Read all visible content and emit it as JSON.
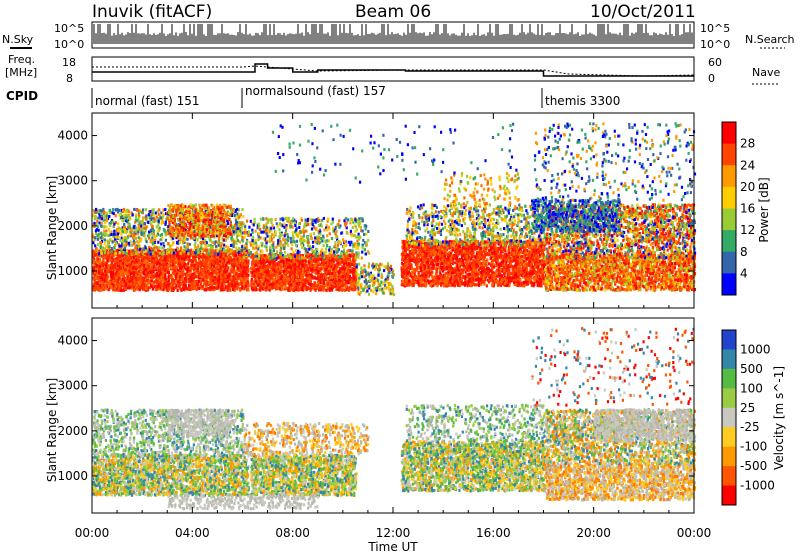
{
  "header": {
    "station": "Inuvik (fitACF)",
    "beam": "Beam 06",
    "date": "10/Oct/2011"
  },
  "top_panels": {
    "nsky_label": "N.Sky",
    "nsky_ticks": [
      "10^5",
      "10^0"
    ],
    "nsearch_label": "N.Search",
    "nsearch_ticks": [
      "10^5",
      "10^0"
    ],
    "freq_label": "Freq.",
    "freq_unit": "[MHz]",
    "freq_ticks": [
      "18",
      "8"
    ],
    "nave_label": "Nave",
    "nave_ticks": [
      "60",
      "0"
    ],
    "cpid_label": "CPID",
    "cpid_segments": [
      {
        "label": "normal (fast) 151",
        "start_hour": 0
      },
      {
        "label": "normalsound (fast) 157",
        "start_hour": 6
      },
      {
        "label": "themis 3300",
        "start_hour": 18
      }
    ]
  },
  "chart_data": [
    {
      "type": "heatmap",
      "title": "",
      "xlabel": "Time UT",
      "ylabel": "Slant Range [km]",
      "xlim_hours": [
        0,
        24
      ],
      "ylim": [
        180,
        4500
      ],
      "yticks": [
        1000,
        2000,
        3000,
        4000
      ],
      "colorbar": {
        "label": "Power [dB]",
        "levels": [
          "28",
          "24",
          "20",
          "16",
          "12",
          "8",
          "4"
        ],
        "colors": [
          "#ff0000",
          "#ff4400",
          "#ff9900",
          "#ffcc00",
          "#99cc33",
          "#33aa66",
          "#3366aa",
          "#0000ff"
        ]
      }
    },
    {
      "type": "heatmap",
      "title": "",
      "xlabel": "Time UT",
      "ylabel": "Slant Range [km]",
      "xlim_hours": [
        0,
        24
      ],
      "ylim": [
        180,
        4500
      ],
      "yticks": [
        1000,
        2000,
        3000,
        4000
      ],
      "colorbar": {
        "label": "Velocity [m s^-1]",
        "levels": [
          "1000",
          "500",
          "100",
          "25",
          "-25",
          "-100",
          "-500",
          "-1000"
        ],
        "colors": [
          "#2244cc",
          "#3388aa",
          "#55bb44",
          "#99cc44",
          "#c8c8c0",
          "#ffcc22",
          "#ff9900",
          "#ff5500",
          "#ff0000"
        ]
      }
    }
  ],
  "xaxis": {
    "ticks": [
      "00:00",
      "04:00",
      "08:00",
      "12:00",
      "16:00",
      "20:00",
      "00:00"
    ],
    "label": "Time UT"
  },
  "colors": {
    "power_high": "#ff0000",
    "power_mid": "#ff9900",
    "power_low": "#0000ff",
    "groundscatter": "#c0c0b8"
  }
}
